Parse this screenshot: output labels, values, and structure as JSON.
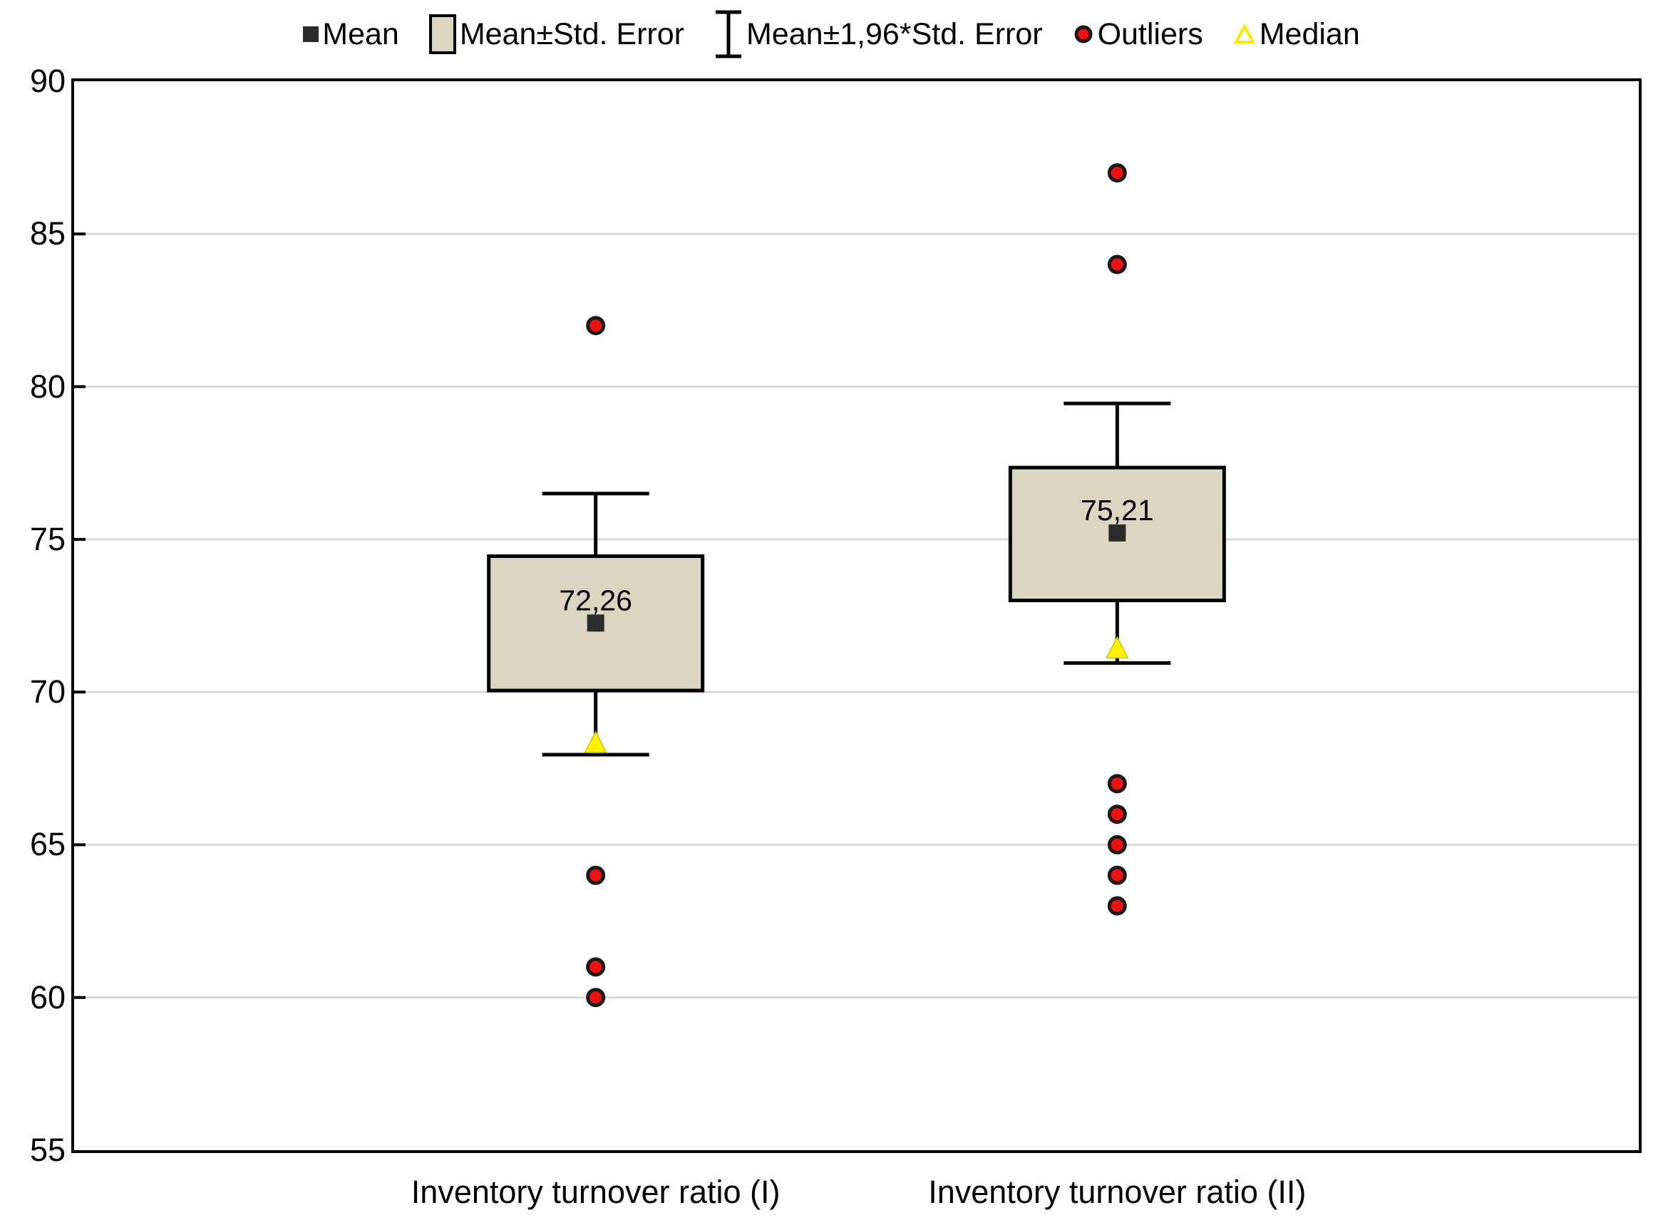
{
  "page": {
    "background": "#ffffff"
  },
  "legend": {
    "items": [
      {
        "icon": "mean-square-icon",
        "label": "Mean"
      },
      {
        "icon": "se-box-icon",
        "label": "Mean±Std. Error"
      },
      {
        "icon": "error-bar-icon",
        "label": "Mean±1,96*Std. Error"
      },
      {
        "icon": "outlier-dot-icon",
        "label": "Outliers"
      },
      {
        "icon": "median-triangle-icon",
        "label": "Median"
      }
    ]
  },
  "chart_data": {
    "type": "box",
    "title": "",
    "xlabel": "",
    "ylabel": "",
    "categories": [
      "Inventory turnover ratio (I)",
      "Inventory turnover ratio (II)"
    ],
    "ylim": [
      55,
      90
    ],
    "yticks": [
      90,
      85,
      80,
      75,
      70,
      65,
      60,
      55
    ],
    "ytick_labels": [
      "90",
      "85",
      "80",
      "75",
      "70",
      "65",
      "60",
      "55"
    ],
    "grid": "horizontal",
    "legend_position": "top",
    "series": [
      {
        "category": "Inventory turnover ratio (I)",
        "mean": 72.26,
        "mean_label": "72,26",
        "box_low": 70.05,
        "box_high": 74.45,
        "whisker_low": 67.95,
        "whisker_high": 76.5,
        "median": 68.3,
        "outliers": [
          82,
          64,
          61,
          60
        ]
      },
      {
        "category": "Inventory turnover ratio (II)",
        "mean": 75.21,
        "mean_label": "75,21",
        "box_low": 73.0,
        "box_high": 77.35,
        "whisker_low": 70.95,
        "whisker_high": 79.45,
        "median": 71.4,
        "outliers": [
          87,
          84,
          67,
          66,
          65,
          64,
          63
        ]
      }
    ]
  },
  "colors": {
    "box_fill": "#DCD6C1",
    "box_stroke": "#000000",
    "whisker": "#000000",
    "outlier_fill": "#EE1111",
    "outlier_stroke": "#1A1A1A",
    "median_fill": "#FFF200",
    "median_stroke": "#C9C400",
    "mean_fill": "#2B2B2B",
    "gridline": "#D9D9D9",
    "axis": "#000000",
    "text": "#000000",
    "legend_median_stroke": "#FFE800"
  }
}
